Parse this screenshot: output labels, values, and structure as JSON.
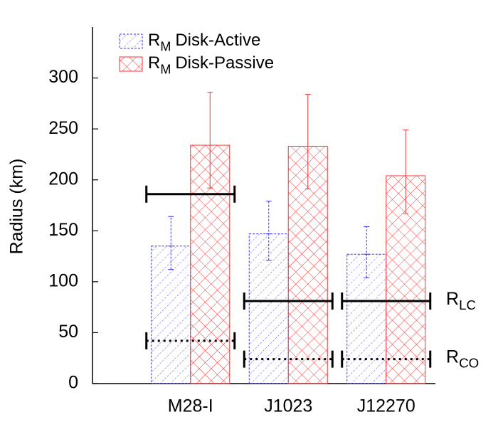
{
  "chart_data": {
    "type": "bar",
    "y_label": "Radius (km)",
    "categories": [
      "M28-I",
      "J1023",
      "J12270"
    ],
    "series_symbol": {
      "main": "R",
      "sub": "M"
    },
    "series": [
      {
        "name": "Disk-Active",
        "color": "#3333ff",
        "hatch": "diagonal",
        "values": [
          135,
          147,
          127
        ],
        "error_minus": [
          23,
          26,
          23
        ],
        "error_plus": [
          29,
          32,
          27
        ]
      },
      {
        "name": "Disk-Passive",
        "color": "#ff3333",
        "hatch": "cross",
        "values": [
          234,
          233,
          204
        ],
        "error_minus": [
          42,
          42,
          37
        ],
        "error_plus": [
          52,
          51,
          45
        ]
      }
    ],
    "reference_lines": [
      {
        "symbol": {
          "main": "R",
          "sub": "LC"
        },
        "style": "solid",
        "values": [
          186,
          81,
          81
        ]
      },
      {
        "symbol": {
          "main": "R",
          "sub": "CO"
        },
        "style": "dotted",
        "values": [
          42,
          24,
          24
        ]
      }
    ],
    "ylim": [
      0,
      350
    ],
    "yticks": [
      0,
      50,
      100,
      150,
      200,
      250,
      300
    ]
  }
}
